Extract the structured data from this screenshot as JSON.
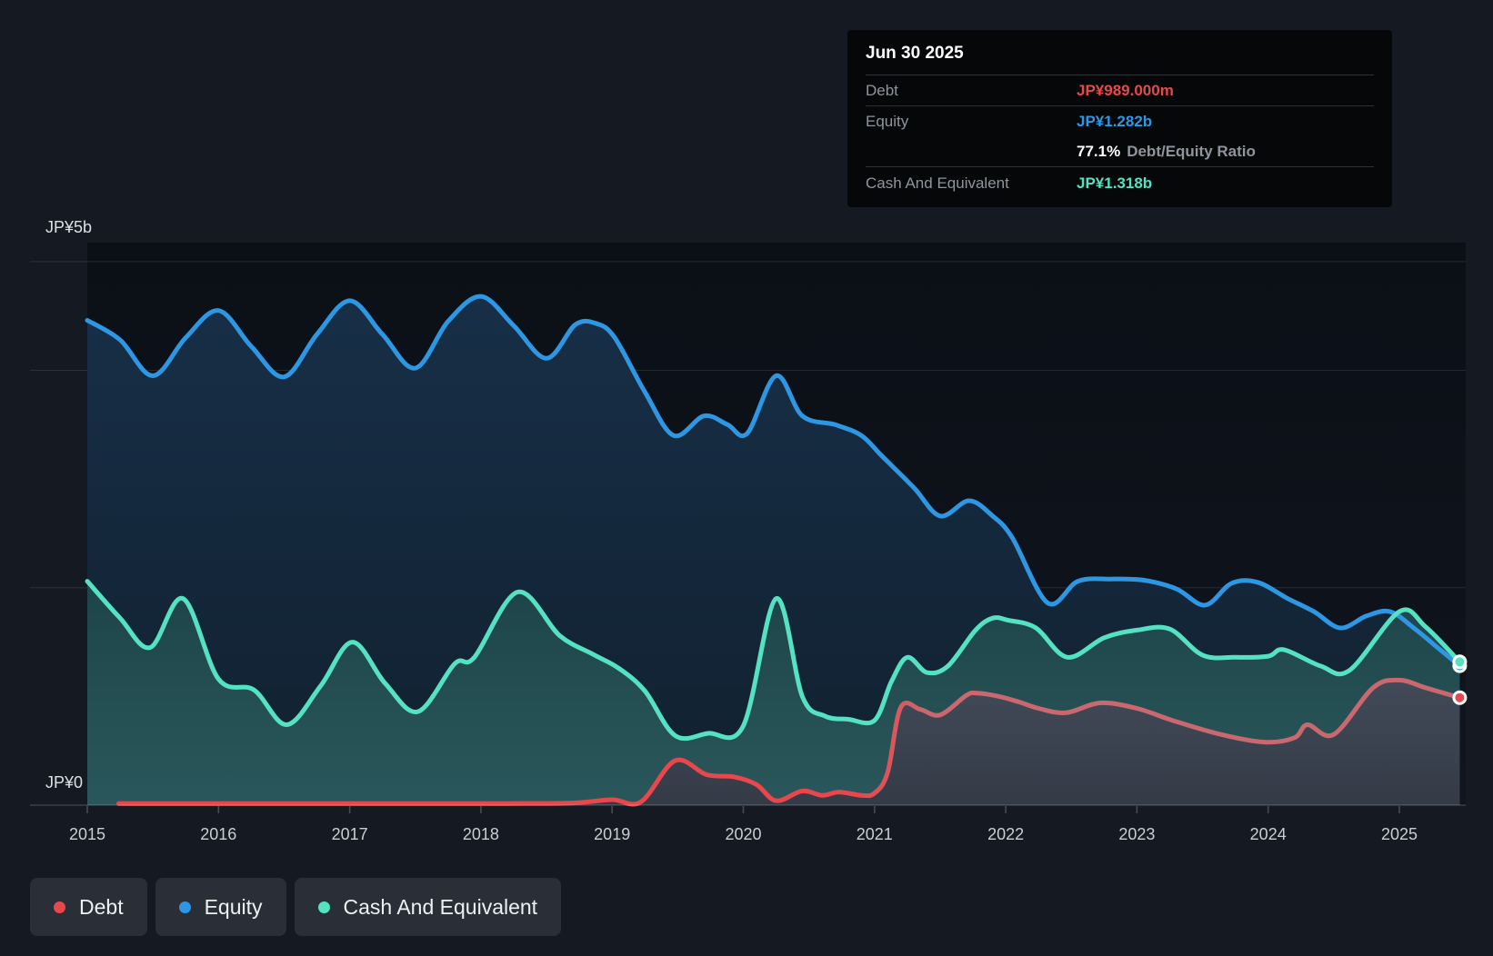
{
  "colors": {
    "debt": "#e8474c",
    "debt_line_late": "#c9686f",
    "equity": "#2e97e3",
    "cash": "#54e2c3",
    "background": "#151a22",
    "plot_background": "#0c1017",
    "tooltip_background": "#060709",
    "legend_chip_background": "#2a2e37"
  },
  "tooltip": {
    "title": "Jun 30 2025",
    "debt_label": "Debt",
    "debt_value": "JP¥989.000m",
    "equity_label": "Equity",
    "equity_value": "JP¥1.282b",
    "ratio_value": "77.1%",
    "ratio_label": "Debt/Equity Ratio",
    "cash_label": "Cash And Equivalent",
    "cash_value": "JP¥1.318b"
  },
  "legend": {
    "debt": "Debt",
    "equity": "Equity",
    "cash": "Cash And Equivalent"
  },
  "axis": {
    "y_top": "JP¥5b",
    "y_zero": "JP¥0",
    "years": [
      "2015",
      "2016",
      "2017",
      "2018",
      "2019",
      "2020",
      "2021",
      "2022",
      "2023",
      "2024",
      "2025"
    ]
  },
  "chart_data": {
    "type": "area",
    "title": "",
    "xlabel": "",
    "ylabel": "JP¥ (billions)",
    "x_unit": "decimal_year",
    "x_range": [
      2015.0,
      2025.46
    ],
    "ylim": [
      0,
      5.17
    ],
    "y_gridlines_b": [
      5,
      4,
      2,
      0
    ],
    "y_tick_labels": [
      "JP¥5b",
      "JP¥0"
    ],
    "legend_position": "bottom-left",
    "series": [
      {
        "role": "equity",
        "name": "Equity",
        "color": "#2e97e3",
        "end_value_label": "JP¥1.282b",
        "points": [
          [
            2015.0,
            4.46
          ],
          [
            2015.25,
            4.28
          ],
          [
            2015.5,
            3.95
          ],
          [
            2015.75,
            4.3
          ],
          [
            2016.0,
            4.55
          ],
          [
            2016.25,
            4.22
          ],
          [
            2016.5,
            3.94
          ],
          [
            2016.75,
            4.33
          ],
          [
            2017.0,
            4.64
          ],
          [
            2017.25,
            4.33
          ],
          [
            2017.5,
            4.02
          ],
          [
            2017.75,
            4.45
          ],
          [
            2018.0,
            4.68
          ],
          [
            2018.25,
            4.41
          ],
          [
            2018.5,
            4.11
          ],
          [
            2018.72,
            4.42
          ],
          [
            2018.88,
            4.43
          ],
          [
            2019.02,
            4.3
          ],
          [
            2019.25,
            3.8
          ],
          [
            2019.47,
            3.4
          ],
          [
            2019.7,
            3.58
          ],
          [
            2019.88,
            3.5
          ],
          [
            2020.03,
            3.42
          ],
          [
            2020.25,
            3.95
          ],
          [
            2020.45,
            3.58
          ],
          [
            2020.7,
            3.5
          ],
          [
            2020.9,
            3.4
          ],
          [
            2021.05,
            3.22
          ],
          [
            2021.3,
            2.92
          ],
          [
            2021.5,
            2.66
          ],
          [
            2021.72,
            2.8
          ],
          [
            2021.9,
            2.66
          ],
          [
            2022.05,
            2.46
          ],
          [
            2022.32,
            1.86
          ],
          [
            2022.55,
            2.06
          ],
          [
            2022.8,
            2.08
          ],
          [
            2023.05,
            2.07
          ],
          [
            2023.3,
            1.99
          ],
          [
            2023.52,
            1.84
          ],
          [
            2023.72,
            2.04
          ],
          [
            2023.92,
            2.05
          ],
          [
            2024.15,
            1.9
          ],
          [
            2024.35,
            1.78
          ],
          [
            2024.55,
            1.63
          ],
          [
            2024.75,
            1.74
          ],
          [
            2024.93,
            1.78
          ],
          [
            2025.12,
            1.62
          ],
          [
            2025.3,
            1.44
          ],
          [
            2025.46,
            1.282
          ]
        ]
      },
      {
        "role": "cash",
        "name": "Cash And Equivalent",
        "color": "#54e2c3",
        "end_value_label": "JP¥1.318b",
        "points": [
          [
            2015.0,
            2.06
          ],
          [
            2015.25,
            1.72
          ],
          [
            2015.48,
            1.45
          ],
          [
            2015.73,
            1.9
          ],
          [
            2016.0,
            1.16
          ],
          [
            2016.27,
            1.06
          ],
          [
            2016.52,
            0.74
          ],
          [
            2016.78,
            1.1
          ],
          [
            2017.02,
            1.5
          ],
          [
            2017.27,
            1.12
          ],
          [
            2017.52,
            0.86
          ],
          [
            2017.8,
            1.3
          ],
          [
            2017.95,
            1.36
          ],
          [
            2018.28,
            1.96
          ],
          [
            2018.6,
            1.56
          ],
          [
            2018.85,
            1.39
          ],
          [
            2019.05,
            1.26
          ],
          [
            2019.25,
            1.05
          ],
          [
            2019.48,
            0.64
          ],
          [
            2019.73,
            0.66
          ],
          [
            2020.0,
            0.73
          ],
          [
            2020.25,
            1.9
          ],
          [
            2020.45,
            1.0
          ],
          [
            2020.62,
            0.82
          ],
          [
            2020.8,
            0.79
          ],
          [
            2021.0,
            0.78
          ],
          [
            2021.13,
            1.14
          ],
          [
            2021.25,
            1.36
          ],
          [
            2021.4,
            1.22
          ],
          [
            2021.56,
            1.28
          ],
          [
            2021.77,
            1.61
          ],
          [
            2021.9,
            1.72
          ],
          [
            2022.02,
            1.7
          ],
          [
            2022.23,
            1.63
          ],
          [
            2022.47,
            1.36
          ],
          [
            2022.75,
            1.54
          ],
          [
            2023.0,
            1.61
          ],
          [
            2023.25,
            1.62
          ],
          [
            2023.5,
            1.38
          ],
          [
            2023.75,
            1.36
          ],
          [
            2024.0,
            1.37
          ],
          [
            2024.12,
            1.43
          ],
          [
            2024.4,
            1.28
          ],
          [
            2024.62,
            1.24
          ],
          [
            2025.0,
            1.78
          ],
          [
            2025.2,
            1.64
          ],
          [
            2025.46,
            1.318
          ]
        ]
      },
      {
        "role": "debt",
        "name": "Debt",
        "color": "#e8474c",
        "end_value_label": "JP¥989.000m",
        "points": [
          [
            2015.24,
            0.015
          ],
          [
            2015.7,
            0.015
          ],
          [
            2016.2,
            0.015
          ],
          [
            2016.7,
            0.015
          ],
          [
            2017.2,
            0.015
          ],
          [
            2017.7,
            0.015
          ],
          [
            2018.2,
            0.015
          ],
          [
            2018.7,
            0.02
          ],
          [
            2019.0,
            0.05
          ],
          [
            2019.22,
            0.03
          ],
          [
            2019.48,
            0.41
          ],
          [
            2019.72,
            0.28
          ],
          [
            2019.93,
            0.26
          ],
          [
            2020.1,
            0.19
          ],
          [
            2020.25,
            0.04
          ],
          [
            2020.45,
            0.13
          ],
          [
            2020.6,
            0.09
          ],
          [
            2020.73,
            0.12
          ],
          [
            2020.9,
            0.09
          ],
          [
            2021.0,
            0.11
          ],
          [
            2021.1,
            0.3
          ],
          [
            2021.2,
            0.9
          ],
          [
            2021.35,
            0.88
          ],
          [
            2021.5,
            0.83
          ],
          [
            2021.7,
            1.01
          ],
          [
            2021.78,
            1.03
          ],
          [
            2021.95,
            1.0
          ],
          [
            2022.1,
            0.95
          ],
          [
            2022.25,
            0.89
          ],
          [
            2022.46,
            0.85
          ],
          [
            2022.72,
            0.94
          ],
          [
            2023.0,
            0.89
          ],
          [
            2023.27,
            0.78
          ],
          [
            2023.64,
            0.65
          ],
          [
            2023.97,
            0.58
          ],
          [
            2024.2,
            0.62
          ],
          [
            2024.3,
            0.74
          ],
          [
            2024.5,
            0.65
          ],
          [
            2024.8,
            1.08
          ],
          [
            2025.0,
            1.15
          ],
          [
            2025.2,
            1.08
          ],
          [
            2025.46,
            0.989
          ]
        ]
      }
    ]
  }
}
